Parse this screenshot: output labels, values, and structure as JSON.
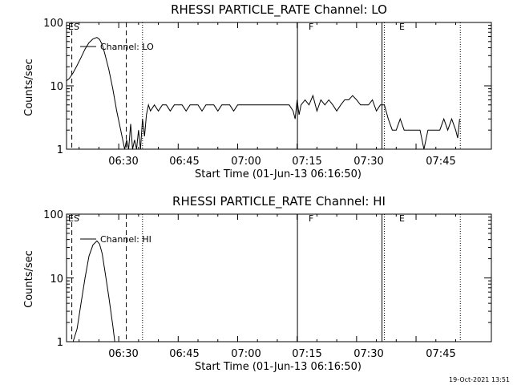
{
  "timestamp": "19-Oct-2021 13:51",
  "chart_data": [
    {
      "type": "line",
      "title": "RHESSI PARTICLE_RATE Channel: LO",
      "xlabel": "Start Time (01-Jun-13 06:16:50)",
      "ylabel": "Counts/sec",
      "y_scale": "log",
      "ylim": [
        1,
        100
      ],
      "xlim": [
        "06:16:50",
        "08:04:00"
      ],
      "x_ticks": [
        "06:30",
        "06:45",
        "07:00",
        "07:15",
        "07:30",
        "07:45"
      ],
      "y_ticks": [
        "1",
        "10",
        "100"
      ],
      "legend": "Channel: LO",
      "markers": [
        {
          "label": "ES",
          "time": "06:16:50",
          "style": "solid"
        },
        {
          "label": "F",
          "time": "07:15:05",
          "style": "solid"
        },
        {
          "label": "E",
          "time": "07:36:25",
          "style": "solid"
        }
      ],
      "boundaries": [
        {
          "time": "06:18:10",
          "style": "dashed"
        },
        {
          "time": "06:31:55",
          "style": "dashed"
        },
        {
          "time": "06:36:00",
          "style": "dotted"
        },
        {
          "time": "07:37:00",
          "style": "dotted"
        },
        {
          "time": "07:56:10",
          "style": "dotted"
        }
      ],
      "series": [
        {
          "name": "Channel: LO",
          "x": [
            "06:16:50",
            "06:17:30",
            "06:18:30",
            "06:19:30",
            "06:20:30",
            "06:21:30",
            "06:22:30",
            "06:23:30",
            "06:24:30",
            "06:25:10",
            "06:25:50",
            "06:26:30",
            "06:27:30",
            "06:28:30",
            "06:29:30",
            "06:30:30",
            "06:31:30",
            "06:32:00",
            "06:32:30",
            "06:33:00",
            "06:33:30",
            "06:34:00",
            "06:34:30",
            "06:35:00",
            "06:35:30",
            "06:36:00",
            "06:36:30",
            "06:37:00",
            "06:37:30",
            "06:38:00",
            "06:39:00",
            "06:40:00",
            "06:41:00",
            "06:42:00",
            "06:43:00",
            "06:44:00",
            "06:45:00",
            "06:46:00",
            "06:47:00",
            "06:48:00",
            "06:49:00",
            "06:50:00",
            "06:51:00",
            "06:52:00",
            "06:53:00",
            "06:54:00",
            "06:55:00",
            "06:56:00",
            "06:57:00",
            "06:58:00",
            "06:59:00",
            "07:00:00",
            "07:01:00",
            "07:02:00",
            "07:03:00",
            "07:04:00",
            "07:05:00",
            "07:06:00",
            "07:07:00",
            "07:08:00",
            "07:09:00",
            "07:10:00",
            "07:11:00",
            "07:12:00",
            "07:13:00",
            "07:14:00",
            "07:14:30",
            "07:15:00",
            "07:15:30",
            "07:16:00",
            "07:17:00",
            "07:18:00",
            "07:19:00",
            "07:20:00",
            "07:21:00",
            "07:22:00",
            "07:23:00",
            "07:24:00",
            "07:25:00",
            "07:26:00",
            "07:27:00",
            "07:28:00",
            "07:29:00",
            "07:30:00",
            "07:31:00",
            "07:32:00",
            "07:33:00",
            "07:34:00",
            "07:35:00",
            "07:36:00",
            "07:37:00",
            "07:38:00",
            "07:39:00",
            "07:40:00",
            "07:41:00",
            "07:42:00",
            "07:43:00",
            "07:44:00",
            "07:45:00",
            "07:46:00",
            "07:47:00",
            "07:48:00",
            "07:49:00",
            "07:50:00",
            "07:51:00",
            "07:52:00",
            "07:53:00",
            "07:54:00",
            "07:55:00",
            "07:55:30",
            "07:56:00"
          ],
          "values": [
            12,
            13,
            16,
            21,
            28,
            38,
            48,
            55,
            58,
            54,
            45,
            32,
            18,
            9,
            4,
            2,
            1,
            1.4,
            1,
            2.5,
            1,
            1.4,
            1,
            2,
            1,
            3,
            1.6,
            3.5,
            5,
            4,
            5,
            4,
            5,
            5,
            4,
            5,
            5,
            5,
            4,
            5,
            5,
            5,
            4,
            5,
            5,
            5,
            4,
            5,
            5,
            5,
            4,
            5,
            5,
            5,
            5,
            5,
            5,
            5,
            5,
            5,
            5,
            5,
            5,
            5,
            5,
            4,
            3,
            6,
            3.5,
            5,
            6,
            5,
            7,
            4,
            6,
            5,
            6,
            5,
            4,
            5,
            6,
            6,
            7,
            6,
            5,
            5,
            5,
            6,
            4,
            5,
            5,
            3,
            2,
            2,
            3,
            2,
            2,
            2,
            2,
            2,
            1,
            2,
            2,
            2,
            2,
            3,
            2,
            3,
            2,
            1.5,
            3
          ]
        }
      ]
    },
    {
      "type": "line",
      "title": "RHESSI PARTICLE_RATE Channel: HI",
      "xlabel": "Start Time (01-Jun-13 06:16:50)",
      "ylabel": "Counts/sec",
      "y_scale": "log",
      "ylim": [
        1,
        100
      ],
      "xlim": [
        "06:16:50",
        "08:04:00"
      ],
      "x_ticks": [
        "06:30",
        "06:45",
        "07:00",
        "07:15",
        "07:30",
        "07:45"
      ],
      "y_ticks": [
        "1",
        "10",
        "100"
      ],
      "legend": "Channel: HI",
      "markers": [
        {
          "label": "ES",
          "time": "06:16:50",
          "style": "solid"
        },
        {
          "label": "F",
          "time": "07:15:05",
          "style": "solid"
        },
        {
          "label": "E",
          "time": "07:36:25",
          "style": "solid"
        }
      ],
      "boundaries": [
        {
          "time": "06:18:10",
          "style": "dashed"
        },
        {
          "time": "06:31:55",
          "style": "dashed"
        },
        {
          "time": "06:36:00",
          "style": "dotted"
        },
        {
          "time": "07:37:00",
          "style": "dotted"
        },
        {
          "time": "07:56:10",
          "style": "dotted"
        }
      ],
      "series": [
        {
          "name": "Channel: HI",
          "x": [
            "06:18:30",
            "06:19:30",
            "06:20:30",
            "06:21:30",
            "06:22:30",
            "06:23:30",
            "06:24:30",
            "06:25:10",
            "06:25:50",
            "06:26:30",
            "06:27:30",
            "06:28:30",
            "06:29:00"
          ],
          "values": [
            1,
            1.6,
            4,
            10,
            22,
            33,
            38,
            34,
            24,
            13,
            5,
            1.8,
            1
          ]
        }
      ]
    }
  ]
}
